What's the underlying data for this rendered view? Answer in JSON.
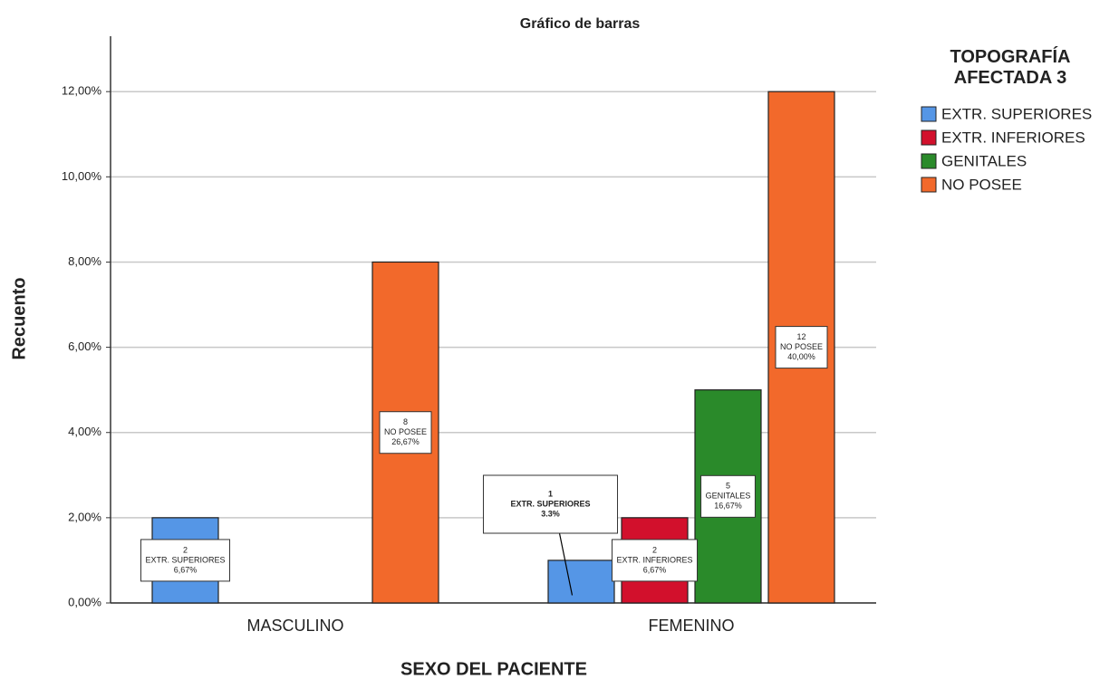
{
  "chart_data": {
    "type": "bar",
    "title": "Gráfico de barras",
    "x_label": "SEXO DEL PACIENTE",
    "y_label": "Recuento",
    "legend_title": "TOPOGRAFÍA AFECTADA 3",
    "legend": "right",
    "categories": [
      "MASCULINO",
      "FEMENINO"
    ],
    "series": [
      {
        "name": "EXTR. SUPERIORES",
        "color": "#5596e6",
        "values": [
          2,
          1
        ],
        "percent_labels": [
          "6,67%",
          "3.3%"
        ]
      },
      {
        "name": "EXTR. INFERIORES",
        "color": "#d2102c",
        "values": [
          null,
          2
        ],
        "percent_labels": [
          null,
          "6,67%"
        ]
      },
      {
        "name": "GENITALES",
        "color": "#2a8a2a",
        "values": [
          null,
          5
        ],
        "percent_labels": [
          null,
          "16,67%"
        ]
      },
      {
        "name": "NO POSEE",
        "color": "#f2692b",
        "values": [
          8,
          12
        ],
        "percent_labels": [
          "26,67%",
          "40,00%"
        ]
      }
    ],
    "ylim": [
      0,
      13.3
    ],
    "yticks": [
      {
        "value": 0,
        "label": "0,00%"
      },
      {
        "value": 2,
        "label": "2,00%"
      },
      {
        "value": 4,
        "label": "4,00%"
      },
      {
        "value": 6,
        "label": "6,00%"
      },
      {
        "value": 8,
        "label": "8,00%"
      },
      {
        "value": 10,
        "label": "10,00%"
      },
      {
        "value": 12,
        "label": "12,00%"
      }
    ],
    "grid": true
  }
}
